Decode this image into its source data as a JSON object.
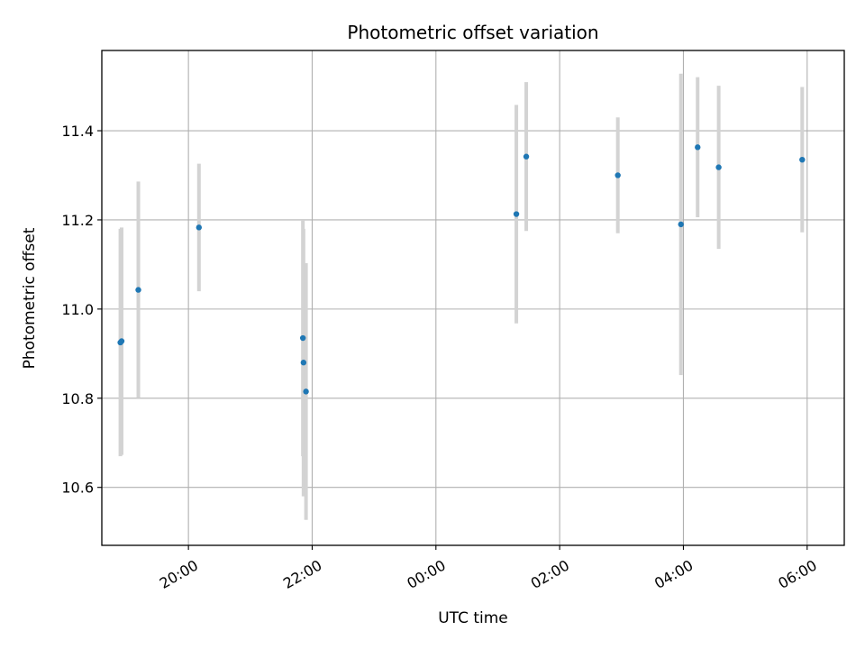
{
  "chart_data": {
    "type": "scatter",
    "title": "Photometric offset variation",
    "xlabel": "UTC time",
    "ylabel": "Photometric offset",
    "x_unit": "hours",
    "xlim": [
      18.6,
      30.6
    ],
    "ylim": [
      10.47,
      11.58
    ],
    "grid": true,
    "x_ticks": [
      {
        "value": 20,
        "label": "20:00"
      },
      {
        "value": 22,
        "label": "22:00"
      },
      {
        "value": 24,
        "label": "00:00"
      },
      {
        "value": 26,
        "label": "02:00"
      },
      {
        "value": 28,
        "label": "04:00"
      },
      {
        "value": 30,
        "label": "06:00"
      }
    ],
    "y_ticks": [
      {
        "value": 10.6,
        "label": "10.6"
      },
      {
        "value": 10.8,
        "label": "10.8"
      },
      {
        "value": 11.0,
        "label": "11.0"
      },
      {
        "value": 11.2,
        "label": "11.2"
      },
      {
        "value": 11.4,
        "label": "11.4"
      }
    ],
    "colors": {
      "point": "#1f77b4",
      "errorbar": "#d3d3d3",
      "grid": "#b0b0b0",
      "axis": "#000000"
    },
    "points": [
      {
        "x": 18.9,
        "y": 10.925,
        "err": 0.255
      },
      {
        "x": 18.92,
        "y": 10.928,
        "err": 0.255
      },
      {
        "x": 19.19,
        "y": 11.043,
        "err": 0.243
      },
      {
        "x": 20.17,
        "y": 11.183,
        "err": 0.143
      },
      {
        "x": 21.85,
        "y": 10.935,
        "err": 0.265
      },
      {
        "x": 21.86,
        "y": 10.88,
        "err": 0.3
      },
      {
        "x": 21.9,
        "y": 10.815,
        "err": 0.288
      },
      {
        "x": 25.3,
        "y": 11.213,
        "err": 0.245
      },
      {
        "x": 25.46,
        "y": 11.342,
        "err": 0.167
      },
      {
        "x": 26.94,
        "y": 11.3,
        "err": 0.13
      },
      {
        "x": 27.96,
        "y": 11.19,
        "err": 0.338
      },
      {
        "x": 28.23,
        "y": 11.363,
        "err": 0.157
      },
      {
        "x": 28.57,
        "y": 11.318,
        "err": 0.183
      },
      {
        "x": 29.92,
        "y": 11.335,
        "err": 0.163
      }
    ]
  }
}
